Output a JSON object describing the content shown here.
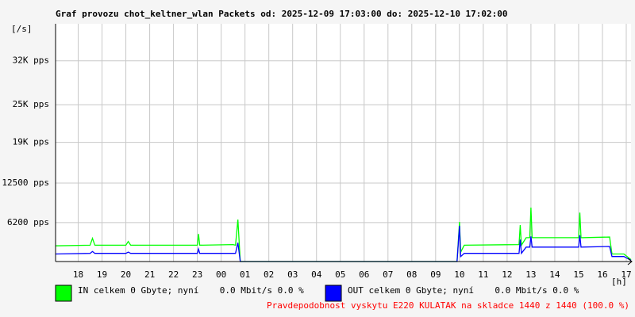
{
  "chart_data": {
    "type": "line",
    "title": "Graf provozu chot_keltner_wlan Packets od: 2025-12-09 17:03:00 do: 2025-12-10 17:02:00",
    "y_unit": "[/s]",
    "x_unit": "[h]",
    "x": [
      0.05,
      1.5,
      1.6,
      1.7,
      3,
      3.1,
      3.2,
      6,
      6.05,
      6.1,
      7.5,
      7.6,
      7.7,
      7.8,
      16.9,
      17.0,
      17.05,
      17.2,
      19.5,
      19.55,
      19.6,
      19.8,
      19.95,
      20.0,
      20.05,
      22,
      22.05,
      22.1,
      23.3,
      23.4,
      23.9,
      24.2
    ],
    "series": [
      {
        "name": "IN celkem 0 Gbyte; nyní    0.0 Mbit/s 0.0 %",
        "color": "#00ff00",
        "values": [
          2500,
          2600,
          3700,
          2600,
          2600,
          3200,
          2600,
          2600,
          4400,
          2600,
          2700,
          2600,
          6700,
          0,
          0,
          6300,
          1500,
          2600,
          2700,
          5800,
          2600,
          3800,
          3800,
          8600,
          3800,
          3800,
          7800,
          3800,
          3900,
          1200,
          1200,
          300
        ]
      },
      {
        "name": "OUT celkem 0 Gbyte; nyní    0.0 Mbit/s 0.0 %",
        "color": "#0000ff",
        "values": [
          1200,
          1300,
          1600,
          1300,
          1300,
          1500,
          1300,
          1300,
          2000,
          1300,
          1300,
          1300,
          3000,
          0,
          0,
          5700,
          800,
          1300,
          1300,
          3500,
          1300,
          2300,
          2300,
          4000,
          2300,
          2300,
          4200,
          2300,
          2400,
          800,
          800,
          200
        ]
      }
    ],
    "xlim": [
      0.05,
      24.2
    ],
    "xticks": [
      {
        "value": 1,
        "label": "18"
      },
      {
        "value": 2,
        "label": "19"
      },
      {
        "value": 3,
        "label": "20"
      },
      {
        "value": 4,
        "label": "21"
      },
      {
        "value": 5,
        "label": "22"
      },
      {
        "value": 6,
        "label": "23"
      },
      {
        "value": 7,
        "label": "00"
      },
      {
        "value": 8,
        "label": "01"
      },
      {
        "value": 9,
        "label": "02"
      },
      {
        "value": 10,
        "label": "03"
      },
      {
        "value": 11,
        "label": "04"
      },
      {
        "value": 12,
        "label": "05"
      },
      {
        "value": 13,
        "label": "06"
      },
      {
        "value": 14,
        "label": "07"
      },
      {
        "value": 15,
        "label": "08"
      },
      {
        "value": 16,
        "label": "09"
      },
      {
        "value": 17,
        "label": "10"
      },
      {
        "value": 18,
        "label": "11"
      },
      {
        "value": 19,
        "label": "12"
      },
      {
        "value": 20,
        "label": "13"
      },
      {
        "value": 21,
        "label": "14"
      },
      {
        "value": 22,
        "label": "15"
      },
      {
        "value": 23,
        "label": "16"
      },
      {
        "value": 24,
        "label": "17"
      }
    ],
    "ylim": [
      0,
      37900
    ],
    "yticks": [
      {
        "value": 6200,
        "label": "6200 pps"
      },
      {
        "value": 12500,
        "label": "12500 pps"
      },
      {
        "value": 19000,
        "label": "19K pps"
      },
      {
        "value": 25000,
        "label": "25K pps"
      },
      {
        "value": 32000,
        "label": "32K pps"
      }
    ],
    "grid": true,
    "footer": "Pravdepodobnost vyskytu E220 KULATAK na skladce 1440 z 1440 (100.0 %)"
  }
}
